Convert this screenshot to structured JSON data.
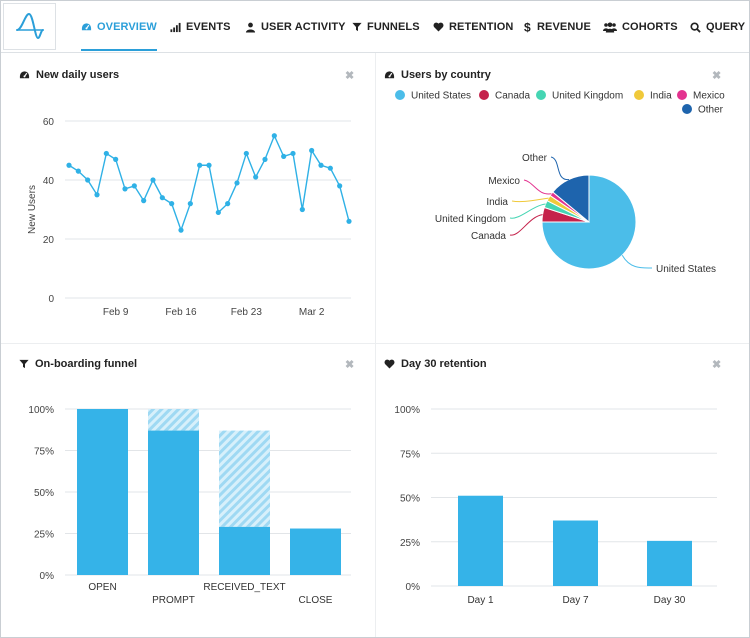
{
  "nav": {
    "items": [
      {
        "label": "OVERVIEW",
        "icon": "dashboard-icon",
        "active": true
      },
      {
        "label": "EVENTS",
        "icon": "bar-signal-icon",
        "active": false
      },
      {
        "label": "USER ACTIVITY",
        "icon": "user-icon",
        "active": false
      },
      {
        "label": "FUNNELS",
        "icon": "filter-icon",
        "active": false
      },
      {
        "label": "RETENTION",
        "icon": "heart-icon",
        "active": false
      },
      {
        "label": "REVENUE",
        "icon": "dollar-icon",
        "active": false
      },
      {
        "label": "COHORTS",
        "icon": "users-icon",
        "active": false
      },
      {
        "label": "QUERY",
        "icon": "search-icon",
        "active": false
      }
    ]
  },
  "colors": {
    "accent": "#2b9fd9",
    "bar": "#35b3e8",
    "line": "#2fb1e6"
  },
  "panels": {
    "daily": {
      "title": "New daily users",
      "icon": "dashboard-icon",
      "close": "✖"
    },
    "country": {
      "title": "Users by country",
      "icon": "dashboard-icon",
      "close": "✖"
    },
    "funnel": {
      "title": "On-boarding funnel",
      "icon": "filter-icon",
      "close": "✖"
    },
    "retention": {
      "title": "Day 30 retention",
      "icon": "heart-icon",
      "close": "✖"
    }
  },
  "chart_data": [
    {
      "id": "daily",
      "type": "line",
      "ylabel": "New Users",
      "ylim": [
        0,
        60
      ],
      "yticks": [
        0,
        20,
        40,
        60
      ],
      "xtick_labels": [
        {
          "label": "Feb 9",
          "index": 5
        },
        {
          "label": "Feb 16",
          "index": 12
        },
        {
          "label": "Feb 23",
          "index": 19
        },
        {
          "label": "Mar 2",
          "index": 26
        }
      ],
      "grid": true,
      "values": [
        45,
        43,
        40,
        35,
        49,
        47,
        37,
        38,
        33,
        40,
        34,
        32,
        23,
        32,
        45,
        45,
        29,
        32,
        39,
        49,
        41,
        47,
        55,
        48,
        49,
        30,
        50,
        45,
        44,
        38,
        26
      ]
    },
    {
      "id": "country",
      "type": "pie",
      "legend_position": "top",
      "slices": [
        {
          "label": "United States",
          "value": 75,
          "color": "#4bbde9"
        },
        {
          "label": "Canada",
          "value": 5,
          "color": "#c5224b"
        },
        {
          "label": "United Kingdom",
          "value": 2.5,
          "color": "#45d5b3"
        },
        {
          "label": "India",
          "value": 2,
          "color": "#f0c93a"
        },
        {
          "label": "Mexico",
          "value": 1.5,
          "color": "#e3338f"
        },
        {
          "label": "Other",
          "value": 14,
          "color": "#1e64ad"
        }
      ]
    },
    {
      "id": "funnel",
      "type": "bar",
      "ylim": [
        0,
        100
      ],
      "yticks": [
        "0%",
        "25%",
        "50%",
        "75%",
        "100%"
      ],
      "categories": [
        "OPEN",
        "PROMPT",
        "RECEIVED_TEXT",
        "CLOSE"
      ],
      "series": [
        {
          "values": [
            100,
            87,
            29,
            28
          ]
        },
        {
          "values": [
            0,
            13,
            58,
            0
          ],
          "style": "hatched"
        }
      ],
      "grid": true
    },
    {
      "id": "retention",
      "type": "bar",
      "ylim": [
        0,
        100
      ],
      "yticks": [
        "0%",
        "25%",
        "50%",
        "75%",
        "100%"
      ],
      "categories": [
        "Day 1",
        "Day 7",
        "Day 30"
      ],
      "values": [
        51,
        37,
        25.5
      ],
      "grid": true
    }
  ]
}
